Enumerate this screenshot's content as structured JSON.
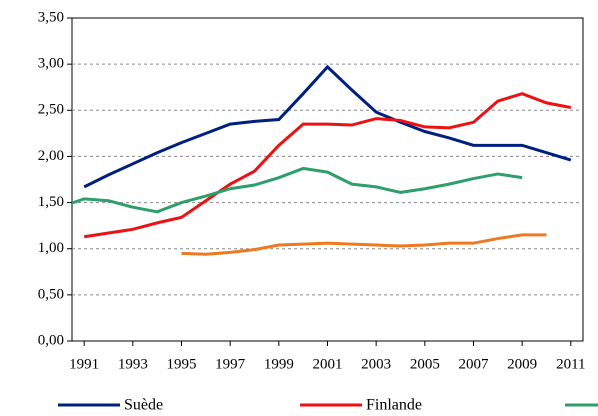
{
  "chart_data": {
    "type": "line",
    "xlim": [
      1990.5,
      2011.5
    ],
    "xticks": [
      1991,
      1993,
      1995,
      1997,
      1999,
      2001,
      2003,
      2005,
      2007,
      2009,
      2011
    ],
    "ylim": [
      0,
      3.5
    ],
    "yticks": [
      {
        "value": 0,
        "label": "0,00"
      },
      {
        "value": 0.5,
        "label": "0,50"
      },
      {
        "value": 1,
        "label": "1,00"
      },
      {
        "value": 1.5,
        "label": "1,50"
      },
      {
        "value": 2,
        "label": "2,00"
      },
      {
        "value": 2.5,
        "label": "2,50"
      },
      {
        "value": 3,
        "label": "3,00"
      },
      {
        "value": 3.5,
        "label": "3,50"
      }
    ],
    "grid": true,
    "legend": "bottom",
    "series": [
      {
        "name": "Suède",
        "color": "#002080",
        "x": [
          1991,
          1992,
          1993,
          1994,
          1995,
          1996,
          1997,
          1998,
          1999,
          2000,
          2001,
          2002,
          2003,
          2004,
          2005,
          2006,
          2007,
          2008,
          2009,
          2010,
          2011
        ],
        "values": [
          1.67,
          1.8,
          1.92,
          2.04,
          2.15,
          2.25,
          2.35,
          2.38,
          2.4,
          2.68,
          2.97,
          2.72,
          2.48,
          2.37,
          2.27,
          2.2,
          2.12,
          2.12,
          2.12,
          2.04,
          1.96
        ]
      },
      {
        "name": "Finlande",
        "color": "#ee1111",
        "x": [
          1991,
          1992,
          1993,
          1994,
          1995,
          1996,
          1997,
          1998,
          1999,
          2000,
          2001,
          2002,
          2003,
          2004,
          2005,
          2006,
          2007,
          2008,
          2009,
          2010,
          2011
        ],
        "values": [
          1.13,
          1.17,
          1.21,
          1.28,
          1.34,
          1.52,
          1.7,
          1.84,
          2.12,
          2.35,
          2.35,
          2.34,
          2.41,
          2.39,
          2.32,
          2.31,
          2.37,
          2.6,
          2.68,
          2.58,
          2.53
        ]
      },
      {
        "color": "#2e9e6a",
        "x": [
          1990,
          1991,
          1992,
          1993,
          1994,
          1995,
          1996,
          1997,
          1998,
          1999,
          2000,
          2001,
          2002,
          2003,
          2004,
          2005,
          2006,
          2007,
          2008,
          2009
        ],
        "values": [
          1.45,
          1.54,
          1.52,
          1.45,
          1.4,
          1.5,
          1.57,
          1.65,
          1.69,
          1.77,
          1.87,
          1.83,
          1.7,
          1.67,
          1.61,
          1.65,
          1.7,
          1.76,
          1.81,
          1.77
        ]
      },
      {
        "color": "#f07820",
        "x": [
          1995,
          1996,
          1997,
          1998,
          1999,
          2000,
          2001,
          2002,
          2003,
          2004,
          2005,
          2006,
          2007,
          2008,
          2009,
          2010
        ],
        "values": [
          0.95,
          0.94,
          0.96,
          0.99,
          1.04,
          1.05,
          1.06,
          1.05,
          1.04,
          1.03,
          1.04,
          1.06,
          1.06,
          1.11,
          1.15,
          1.15
        ]
      }
    ]
  }
}
